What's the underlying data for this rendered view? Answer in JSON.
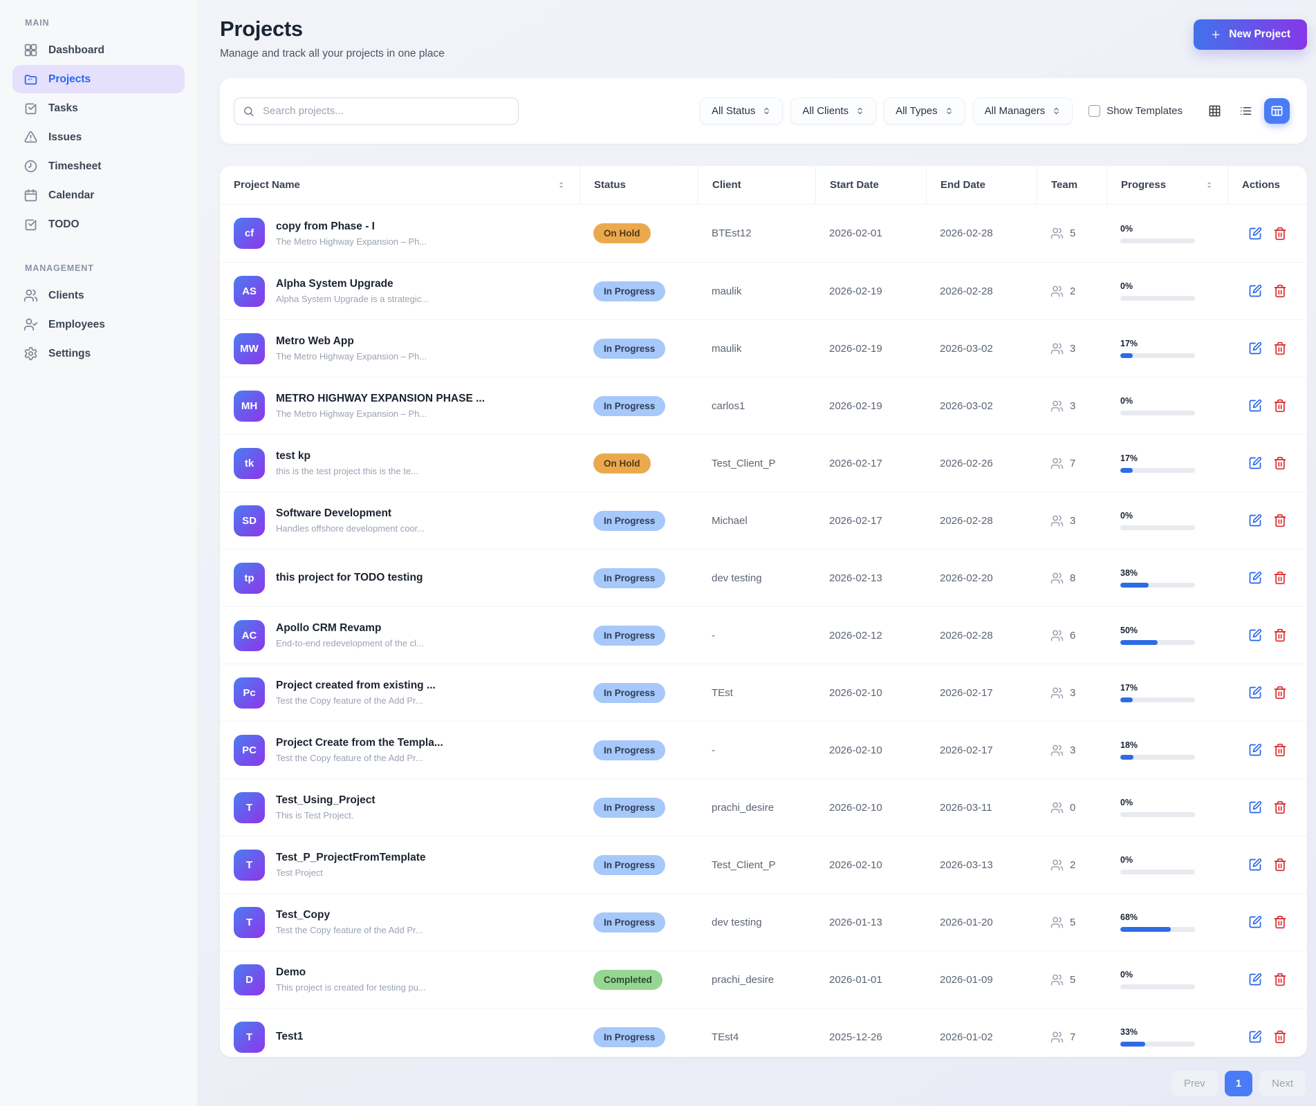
{
  "sidebar": {
    "sections": [
      {
        "title": "MAIN",
        "items": [
          {
            "label": "Dashboard",
            "icon": "dashboard-icon",
            "active": false
          },
          {
            "label": "Projects",
            "icon": "projects-icon",
            "active": true
          },
          {
            "label": "Tasks",
            "icon": "tasks-icon",
            "active": false
          },
          {
            "label": "Issues",
            "icon": "issues-icon",
            "active": false
          },
          {
            "label": "Timesheet",
            "icon": "timesheet-icon",
            "active": false
          },
          {
            "label": "Calendar",
            "icon": "calendar-icon",
            "active": false
          },
          {
            "label": "TODO",
            "icon": "todo-icon",
            "active": false
          }
        ]
      },
      {
        "title": "MANAGEMENT",
        "items": [
          {
            "label": "Clients",
            "icon": "clients-icon",
            "active": false
          },
          {
            "label": "Employees",
            "icon": "employees-icon",
            "active": false
          },
          {
            "label": "Settings",
            "icon": "settings-icon",
            "active": false
          }
        ]
      }
    ]
  },
  "header": {
    "title": "Projects",
    "subtitle": "Manage and track all your projects in one place",
    "new_project_label": "New Project"
  },
  "toolbar": {
    "search_placeholder": "Search projects...",
    "filters": [
      "All Status",
      "All Clients",
      "All Types",
      "All Managers"
    ],
    "show_templates_label": "Show Templates",
    "views": [
      {
        "icon": "grid-view-icon",
        "active": false
      },
      {
        "icon": "list-view-icon",
        "active": false
      },
      {
        "icon": "table-view-icon",
        "active": true
      }
    ]
  },
  "table": {
    "columns": [
      "Project Name",
      "Status",
      "Client",
      "Start Date",
      "End Date",
      "Team",
      "Progress",
      "Actions"
    ],
    "rows": [
      {
        "initials": "cf",
        "name": "copy from Phase - I",
        "description": "The Metro Highway Expansion – Ph...",
        "status": "On Hold",
        "status_type": "onhold",
        "client": "BTEst12",
        "start_date": "2026-02-01",
        "end_date": "2026-02-28",
        "team": "5",
        "progress_label": "0%",
        "progress_pct": 0
      },
      {
        "initials": "AS",
        "name": "Alpha System Upgrade",
        "description": "Alpha System Upgrade is a strategic...",
        "status": "In Progress",
        "status_type": "inprogress",
        "client": "maulik",
        "start_date": "2026-02-19",
        "end_date": "2026-02-28",
        "team": "2",
        "progress_label": "0%",
        "progress_pct": 0
      },
      {
        "initials": "MW",
        "name": "Metro Web App",
        "description": "The Metro Highway Expansion – Ph...",
        "status": "In Progress",
        "status_type": "inprogress",
        "client": "maulik",
        "start_date": "2026-02-19",
        "end_date": "2026-03-02",
        "team": "3",
        "progress_label": "17%",
        "progress_pct": 17
      },
      {
        "initials": "MH",
        "name": "METRO HIGHWAY EXPANSION PHASE ...",
        "description": "The Metro Highway Expansion – Ph...",
        "status": "In Progress",
        "status_type": "inprogress",
        "client": "carlos1",
        "start_date": "2026-02-19",
        "end_date": "2026-03-02",
        "team": "3",
        "progress_label": "0%",
        "progress_pct": 0
      },
      {
        "initials": "tk",
        "name": "test kp",
        "description": "this is the test project this is the te...",
        "status": "On Hold",
        "status_type": "onhold",
        "client": "Test_Client_P",
        "start_date": "2026-02-17",
        "end_date": "2026-02-26",
        "team": "7",
        "progress_label": "17%",
        "progress_pct": 17
      },
      {
        "initials": "SD",
        "name": "Software Development",
        "description": "Handles offshore development coor...",
        "status": "In Progress",
        "status_type": "inprogress",
        "client": "Michael",
        "start_date": "2026-02-17",
        "end_date": "2026-02-28",
        "team": "3",
        "progress_label": "0%",
        "progress_pct": 0
      },
      {
        "initials": "tp",
        "name": "this project for TODO testing",
        "description": "",
        "status": "In Progress",
        "status_type": "inprogress",
        "client": "dev testing",
        "start_date": "2026-02-13",
        "end_date": "2026-02-20",
        "team": "8",
        "progress_label": "38%",
        "progress_pct": 38
      },
      {
        "initials": "AC",
        "name": "Apollo CRM Revamp",
        "description": "End-to-end redevelopment of the cl...",
        "status": "In Progress",
        "status_type": "inprogress",
        "client": "-",
        "start_date": "2026-02-12",
        "end_date": "2026-02-28",
        "team": "6",
        "progress_label": "50%",
        "progress_pct": 50
      },
      {
        "initials": "Pc",
        "name": "Project created from existing ...",
        "description": "Test the Copy feature of the Add Pr...",
        "status": "In Progress",
        "status_type": "inprogress",
        "client": "TEst",
        "start_date": "2026-02-10",
        "end_date": "2026-02-17",
        "team": "3",
        "progress_label": "17%",
        "progress_pct": 17
      },
      {
        "initials": "PC",
        "name": "Project Create from the Templa...",
        "description": "Test the Copy feature of the Add Pr...",
        "status": "In Progress",
        "status_type": "inprogress",
        "client": "-",
        "start_date": "2026-02-10",
        "end_date": "2026-02-17",
        "team": "3",
        "progress_label": "18%",
        "progress_pct": 18
      },
      {
        "initials": "T",
        "name": "Test_Using_Project",
        "description": "This is Test Project.",
        "status": "In Progress",
        "status_type": "inprogress",
        "client": "prachi_desire",
        "start_date": "2026-02-10",
        "end_date": "2026-03-11",
        "team": "0",
        "progress_label": "0%",
        "progress_pct": 0
      },
      {
        "initials": "T",
        "name": "Test_P_ProjectFromTemplate",
        "description": "Test Project",
        "status": "In Progress",
        "status_type": "inprogress",
        "client": "Test_Client_P",
        "start_date": "2026-02-10",
        "end_date": "2026-03-13",
        "team": "2",
        "progress_label": "0%",
        "progress_pct": 0
      },
      {
        "initials": "T",
        "name": "Test_Copy",
        "description": "Test the Copy feature of the Add Pr...",
        "status": "In Progress",
        "status_type": "inprogress",
        "client": "dev testing",
        "start_date": "2026-01-13",
        "end_date": "2026-01-20",
        "team": "5",
        "progress_label": "68%",
        "progress_pct": 68
      },
      {
        "initials": "D",
        "name": "Demo",
        "description": "This project is created for testing pu...",
        "status": "Completed",
        "status_type": "completed",
        "client": "prachi_desire",
        "start_date": "2026-01-01",
        "end_date": "2026-01-09",
        "team": "5",
        "progress_label": "0%",
        "progress_pct": 0
      },
      {
        "initials": "T",
        "name": "Test1",
        "description": "",
        "status": "In Progress",
        "status_type": "inprogress",
        "client": "TEst4",
        "start_date": "2025-12-26",
        "end_date": "2026-01-02",
        "team": "7",
        "progress_label": "33%",
        "progress_pct": 33
      }
    ]
  },
  "pagination": {
    "prev": "Prev",
    "page": "1",
    "next": "Next"
  },
  "colors": {
    "accent_blue": "#2e6be6",
    "new_project_gradient_start": "#4273ea",
    "new_project_gradient_end": "#8737e8",
    "avatar_gradient_start": "#4a7df0",
    "avatar_gradient_end": "#8e35ea",
    "status_in_progress_bg": "#a6c8fa",
    "status_on_hold_bg": "#eba94e",
    "status_completed_bg": "#95d792",
    "active_nav_bg": "#e5e0fb",
    "edit_icon": "#2563eb",
    "delete_icon": "#dc2626"
  }
}
